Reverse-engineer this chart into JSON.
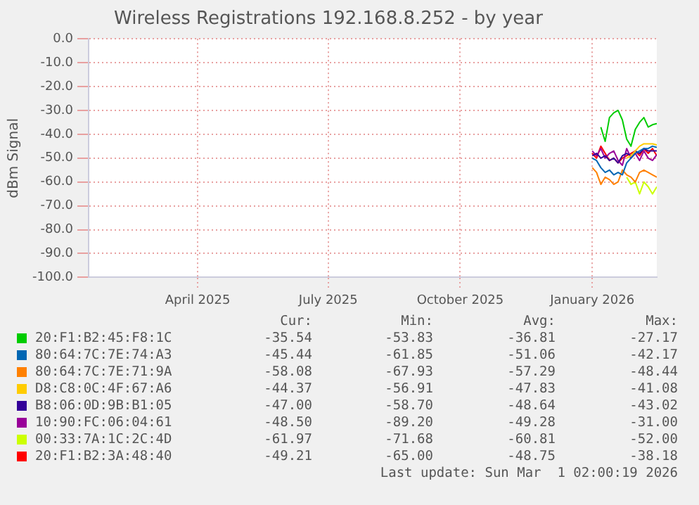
{
  "chart_data": {
    "type": "line",
    "title": "Wireless Registrations 192.168.8.252 - by year",
    "ylabel": "dBm Signal",
    "x": [
      "2026-01-15",
      "2026-01-18",
      "2026-01-21",
      "2026-01-24",
      "2026-01-27",
      "2026-01-30",
      "2026-02-02",
      "2026-02-05",
      "2026-02-08",
      "2026-02-11",
      "2026-02-14",
      "2026-02-17",
      "2026-02-20",
      "2026-02-23",
      "2026-02-26",
      "2026-03-01"
    ],
    "series": [
      {
        "name": "20:F1:B2:45:F8:1C",
        "color": "#00cc00",
        "values": [
          null,
          null,
          -37,
          -43,
          -33,
          -31,
          -30,
          -34,
          -42,
          -45,
          -38,
          -35,
          -33,
          -37,
          -36,
          -35.5
        ]
      },
      {
        "name": "80:64:7C:7E:74:A3",
        "color": "#0066b3",
        "values": [
          -50,
          -51,
          -54,
          -56,
          -55,
          -57,
          -56,
          -57,
          -52,
          -50,
          -48,
          -47,
          -46,
          -46,
          -45,
          -45.5
        ]
      },
      {
        "name": "80:64:7C:7E:71:9A",
        "color": "#ff8000",
        "values": [
          -54,
          -56,
          -61,
          -58,
          -59,
          -61,
          -60,
          -55,
          -57,
          -58,
          -60,
          -56,
          -55,
          -56,
          -57,
          -58
        ]
      },
      {
        "name": "D8:C8:0C:4F:67:A6",
        "color": "#ffcc00",
        "values": [
          null,
          null,
          null,
          null,
          null,
          null,
          null,
          null,
          -50,
          -49,
          -47,
          -45,
          -44,
          -44,
          -44,
          -44.5
        ]
      },
      {
        "name": "B8:06:0D:9B:B1:05",
        "color": "#330099",
        "values": [
          -49,
          -48,
          -50,
          -49,
          -51,
          -50,
          -52,
          -49,
          -48,
          -49,
          -47,
          -48,
          -46,
          -47,
          -47,
          -47.0
        ]
      },
      {
        "name": "10:90:FC:06:04:61",
        "color": "#990099",
        "values": [
          -47,
          -49,
          -46,
          -50,
          -48,
          -47,
          -51,
          -53,
          -46,
          -50,
          -48,
          -51,
          -47,
          -50,
          -51,
          -48.5
        ]
      },
      {
        "name": "00:33:7A:1C:2C:4D",
        "color": "#ccff00",
        "values": [
          null,
          null,
          null,
          null,
          null,
          null,
          null,
          null,
          -58,
          -61,
          -60,
          -65,
          -60,
          -62,
          -65,
          -62
        ]
      },
      {
        "name": "20:F1:B2:3A:48:40",
        "color": "#ff0000",
        "values": [
          -48,
          -50,
          -45,
          -48,
          -51,
          -50,
          -52,
          -50,
          -49,
          -48,
          -47,
          -49,
          -46,
          -48,
          -46,
          -49
        ]
      }
    ],
    "xlim": [
      "2025-01-29",
      "2026-03-01"
    ],
    "xticks": [
      {
        "value": "2025-04-15",
        "label": "April 2025"
      },
      {
        "value": "2025-07-15",
        "label": "July 2025"
      },
      {
        "value": "2025-10-15",
        "label": "October 2025"
      },
      {
        "value": "2026-01-15",
        "label": "January 2026"
      }
    ],
    "ylim": [
      -100,
      0
    ],
    "yticks": [
      {
        "value": 0,
        "label": "0.0"
      },
      {
        "value": -10,
        "label": "-10.0"
      },
      {
        "value": -20,
        "label": "-20.0"
      },
      {
        "value": -30,
        "label": "-30.0"
      },
      {
        "value": -40,
        "label": "-40.0"
      },
      {
        "value": -50,
        "label": "-50.0"
      },
      {
        "value": -60,
        "label": "-60.0"
      },
      {
        "value": -70,
        "label": "-70.0"
      },
      {
        "value": -80,
        "label": "-80.0"
      },
      {
        "value": -90,
        "label": "-90.0"
      },
      {
        "value": -100,
        "label": "-100.0"
      }
    ],
    "grid": true,
    "legend": "bottom",
    "marker": "none",
    "line_style": "solid",
    "annotations": [
      "Cur:",
      "Min:",
      "Avg:",
      "Max:",
      "-35.54",
      "-53.83",
      "-36.81",
      "-27.17",
      "-45.44",
      "-61.85",
      "-51.06",
      "-42.17",
      "-58.08",
      "-67.93",
      "-57.29",
      "-48.44",
      "-44.37",
      "-56.91",
      "-47.83",
      "-41.08",
      "-47.00",
      "-58.70",
      "-48.64",
      "-43.02",
      "-48.50",
      "-89.20",
      "-49.28",
      "-31.00",
      "-61.97",
      "-71.68",
      "-60.81",
      "-52.00",
      "-49.21",
      "-65.00",
      "-48.75",
      "-38.18",
      "Last update: Sun Mar  1 02:00:19 2026"
    ]
  }
}
